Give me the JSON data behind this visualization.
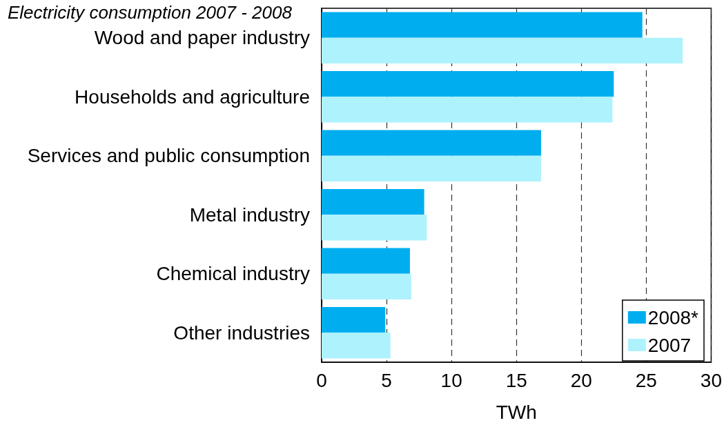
{
  "chart_data": {
    "type": "bar",
    "orientation": "horizontal",
    "title": "Electricity consumption 2007 - 2008",
    "xlabel": "TWh",
    "categories": [
      "Wood and paper industry",
      "Households and agriculture",
      "Services and public consumption",
      "Metal industry",
      "Chemical industry",
      "Other industries"
    ],
    "series": [
      {
        "name": "2008*",
        "color": "#00aeef",
        "values": [
          24.7,
          22.5,
          16.9,
          7.9,
          6.8,
          4.9
        ]
      },
      {
        "name": "2007",
        "color": "#aef2fe",
        "values": [
          27.8,
          22.4,
          16.9,
          8.1,
          6.9,
          5.3
        ]
      }
    ],
    "xlim": [
      0,
      30
    ],
    "xticks": [
      0,
      5,
      10,
      15,
      20,
      25,
      30
    ],
    "grid": "x",
    "legend": "bottom right"
  }
}
